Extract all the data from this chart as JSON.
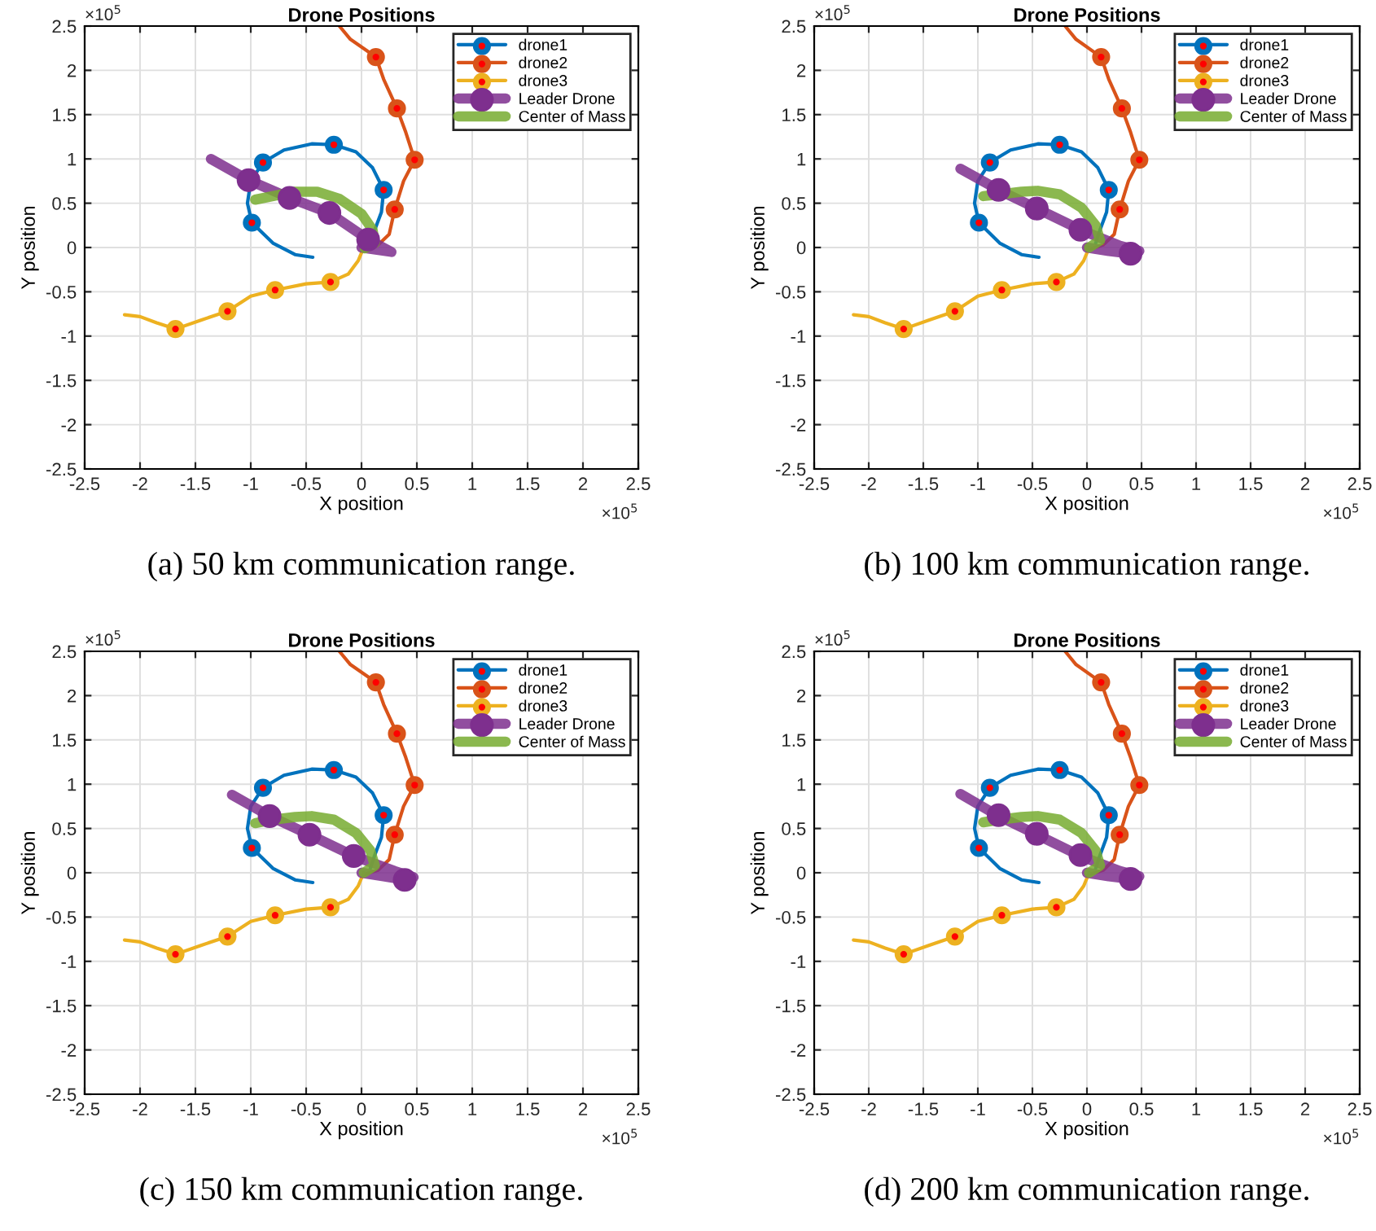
{
  "chart_data": [
    {
      "type": "line",
      "title": "Drone Positions",
      "xlabel": "X position",
      "ylabel": "Y position",
      "xlim": [
        -2.5,
        2.5
      ],
      "ylim": [
        -2.5,
        2.5
      ],
      "xticks": [
        -2.5,
        -2,
        -1.5,
        -1,
        -0.5,
        0,
        0.5,
        1,
        1.5,
        2,
        2.5
      ],
      "yticks": [
        -2.5,
        -2,
        -1.5,
        -1,
        -0.5,
        0,
        0.5,
        1,
        1.5,
        2,
        2.5
      ],
      "grid": true,
      "legend": "top right",
      "annotations": [
        "×10$^{5}$",
        "×10$^{5}$",
        "(a) 50 km communication range."
      ],
      "series": [
        {
          "name": "drone1",
          "color": "#0072bd",
          "x": [
            -0.44,
            -0.6,
            -0.8,
            -0.99,
            -1.03,
            -1.0,
            -0.89,
            -0.7,
            -0.45,
            -0.25,
            -0.05,
            0.1,
            0.2,
            0.18,
            0.12,
            0.08
          ],
          "values": [
            -0.11,
            -0.08,
            0.05,
            0.28,
            0.5,
            0.75,
            0.96,
            1.1,
            1.17,
            1.16,
            1.08,
            0.9,
            0.65,
            0.4,
            0.2,
            0.05
          ]
        },
        {
          "name": "drone2",
          "color": "#d95319",
          "x": [
            -0.2,
            -0.1,
            0.13,
            0.2,
            0.32,
            0.4,
            0.48,
            0.38,
            0.3,
            0.25,
            0.15,
            0.02
          ],
          "values": [
            2.5,
            2.35,
            2.15,
            1.9,
            1.57,
            1.3,
            0.99,
            0.75,
            0.43,
            0.15,
            0.03,
            -0.02
          ]
        },
        {
          "name": "drone3",
          "color": "#edb120",
          "x": [
            -2.14,
            -2.0,
            -1.85,
            -1.68,
            -1.45,
            -1.21,
            -1.0,
            -0.78,
            -0.5,
            -0.28,
            -0.12,
            -0.03,
            0.02
          ],
          "values": [
            -0.76,
            -0.78,
            -0.85,
            -0.92,
            -0.82,
            -0.72,
            -0.55,
            -0.48,
            -0.41,
            -0.39,
            -0.3,
            -0.15,
            0.0
          ]
        },
        {
          "name": "Leader Drone",
          "color": "#7e2f8e",
          "x": [
            -1.36,
            -1.02,
            -0.65,
            -0.29,
            0.06,
            0.27,
            0.0
          ],
          "values": [
            1.0,
            0.76,
            0.56,
            0.39,
            0.09,
            -0.05,
            0.0
          ]
        },
        {
          "name": "Center of Mass",
          "color": "#77ac30",
          "x": [
            -0.96,
            -0.8,
            -0.6,
            -0.4,
            -0.2,
            0.0,
            0.1,
            0.12,
            0.03
          ],
          "values": [
            0.54,
            0.58,
            0.63,
            0.63,
            0.55,
            0.38,
            0.2,
            0.05,
            -0.01
          ]
        },
        {
          "type": "scatter",
          "color": "#0072bd",
          "x": [
            -0.99,
            -0.89,
            -0.25,
            0.2
          ],
          "values": [
            0.28,
            0.96,
            1.16,
            0.65
          ]
        },
        {
          "type": "scatter",
          "color": "#d95319",
          "x": [
            0.13,
            0.32,
            0.48,
            0.3
          ],
          "values": [
            2.15,
            1.57,
            0.99,
            0.43
          ]
        },
        {
          "type": "scatter",
          "color": "#edb120",
          "x": [
            -1.68,
            -1.21,
            -0.78,
            -0.28
          ],
          "values": [
            -0.92,
            -0.72,
            -0.48,
            -0.39
          ]
        },
        {
          "type": "scatter",
          "color": "#7e2f8e",
          "x": [
            -1.02,
            -0.65,
            -0.29,
            0.06
          ],
          "values": [
            0.76,
            0.56,
            0.39,
            0.09
          ]
        }
      ]
    },
    {
      "type": "line",
      "title": "Drone Positions",
      "xlabel": "X position",
      "ylabel": "Y position",
      "xlim": [
        -2.5,
        2.5
      ],
      "ylim": [
        -2.5,
        2.5
      ],
      "xticks": [
        -2.5,
        -2,
        -1.5,
        -1,
        -0.5,
        0,
        0.5,
        1,
        1.5,
        2,
        2.5
      ],
      "yticks": [
        -2.5,
        -2,
        -1.5,
        -1,
        -0.5,
        0,
        0.5,
        1,
        1.5,
        2,
        2.5
      ],
      "grid": true,
      "legend": "top right",
      "annotations": [
        "×10$^{5}$",
        "×10$^{5}$",
        "(b) 100 km communication range."
      ],
      "series": [
        {
          "name": "drone1",
          "color": "#0072bd",
          "x": [
            -0.44,
            -0.6,
            -0.8,
            -0.99,
            -1.03,
            -1.0,
            -0.89,
            -0.7,
            -0.45,
            -0.25,
            -0.05,
            0.1,
            0.2,
            0.18,
            0.12,
            0.08
          ],
          "values": [
            -0.11,
            -0.08,
            0.05,
            0.28,
            0.5,
            0.75,
            0.96,
            1.1,
            1.17,
            1.16,
            1.08,
            0.9,
            0.65,
            0.4,
            0.2,
            0.05
          ]
        },
        {
          "name": "drone2",
          "color": "#d95319",
          "x": [
            -0.2,
            -0.1,
            0.13,
            0.2,
            0.32,
            0.4,
            0.48,
            0.38,
            0.3,
            0.25,
            0.15,
            0.02
          ],
          "values": [
            2.5,
            2.35,
            2.15,
            1.9,
            1.57,
            1.3,
            0.99,
            0.75,
            0.43,
            0.15,
            0.03,
            -0.02
          ]
        },
        {
          "name": "drone3",
          "color": "#edb120",
          "x": [
            -2.14,
            -2.0,
            -1.85,
            -1.68,
            -1.45,
            -1.21,
            -1.0,
            -0.78,
            -0.5,
            -0.28,
            -0.12,
            -0.03,
            0.02
          ],
          "values": [
            -0.76,
            -0.78,
            -0.85,
            -0.92,
            -0.82,
            -0.72,
            -0.55,
            -0.48,
            -0.41,
            -0.39,
            -0.3,
            -0.15,
            0.0
          ]
        },
        {
          "name": "Leader Drone",
          "color": "#7e2f8e",
          "x": [
            -1.16,
            -0.81,
            -0.46,
            -0.06,
            0.3,
            0.48,
            0.4,
            0.2,
            0.0
          ],
          "values": [
            0.89,
            0.65,
            0.44,
            0.2,
            0.02,
            -0.04,
            -0.07,
            -0.04,
            0.0
          ]
        },
        {
          "name": "Center of Mass",
          "color": "#77ac30",
          "x": [
            -0.95,
            -0.8,
            -0.6,
            -0.45,
            -0.25,
            -0.05,
            0.08,
            0.12,
            0.02
          ],
          "values": [
            0.58,
            0.6,
            0.63,
            0.64,
            0.6,
            0.45,
            0.25,
            0.08,
            0.0
          ]
        },
        {
          "type": "scatter",
          "color": "#0072bd",
          "x": [
            -0.99,
            -0.89,
            -0.25,
            0.2
          ],
          "values": [
            0.28,
            0.96,
            1.16,
            0.65
          ]
        },
        {
          "type": "scatter",
          "color": "#d95319",
          "x": [
            0.13,
            0.32,
            0.48,
            0.3
          ],
          "values": [
            2.15,
            1.57,
            0.99,
            0.43
          ]
        },
        {
          "type": "scatter",
          "color": "#edb120",
          "x": [
            -1.68,
            -1.21,
            -0.78,
            -0.28
          ],
          "values": [
            -0.92,
            -0.72,
            -0.48,
            -0.39
          ]
        },
        {
          "type": "scatter",
          "color": "#7e2f8e",
          "x": [
            -0.81,
            -0.46,
            -0.06,
            0.4
          ],
          "values": [
            0.65,
            0.44,
            0.2,
            -0.07
          ]
        }
      ]
    },
    {
      "type": "line",
      "title": "Drone Positions",
      "xlabel": "X position",
      "ylabel": "Y position",
      "xlim": [
        -2.5,
        2.5
      ],
      "ylim": [
        -2.5,
        2.5
      ],
      "xticks": [
        -2.5,
        -2,
        -1.5,
        -1,
        -0.5,
        0,
        0.5,
        1,
        1.5,
        2,
        2.5
      ],
      "yticks": [
        -2.5,
        -2,
        -1.5,
        -1,
        -0.5,
        0,
        0.5,
        1,
        1.5,
        2,
        2.5
      ],
      "grid": true,
      "legend": "top right",
      "annotations": [
        "×10$^{5}$",
        "×10$^{5}$",
        "(c) 150 km communication range."
      ],
      "series": [
        {
          "name": "drone1",
          "color": "#0072bd",
          "x": [
            -0.44,
            -0.6,
            -0.8,
            -0.99,
            -1.03,
            -1.0,
            -0.89,
            -0.7,
            -0.45,
            -0.25,
            -0.05,
            0.1,
            0.2,
            0.18,
            0.12,
            0.08
          ],
          "values": [
            -0.11,
            -0.08,
            0.05,
            0.28,
            0.5,
            0.75,
            0.96,
            1.1,
            1.17,
            1.16,
            1.08,
            0.9,
            0.65,
            0.4,
            0.2,
            0.05
          ]
        },
        {
          "name": "drone2",
          "color": "#d95319",
          "x": [
            -0.2,
            -0.1,
            0.13,
            0.2,
            0.32,
            0.4,
            0.48,
            0.38,
            0.3,
            0.25,
            0.15,
            0.02
          ],
          "values": [
            2.5,
            2.35,
            2.15,
            1.9,
            1.57,
            1.3,
            0.99,
            0.75,
            0.43,
            0.15,
            0.03,
            -0.02
          ]
        },
        {
          "name": "drone3",
          "color": "#edb120",
          "x": [
            -2.14,
            -2.0,
            -1.85,
            -1.68,
            -1.45,
            -1.21,
            -1.0,
            -0.78,
            -0.5,
            -0.28,
            -0.12,
            -0.03,
            0.02
          ],
          "values": [
            -0.76,
            -0.78,
            -0.85,
            -0.92,
            -0.82,
            -0.72,
            -0.55,
            -0.48,
            -0.41,
            -0.39,
            -0.3,
            -0.15,
            0.0
          ]
        },
        {
          "name": "Leader Drone",
          "color": "#7e2f8e",
          "x": [
            -1.17,
            -0.83,
            -0.47,
            -0.07,
            0.3,
            0.47,
            0.39,
            0.2,
            0.0
          ],
          "values": [
            0.88,
            0.64,
            0.43,
            0.19,
            0.02,
            -0.05,
            -0.08,
            -0.04,
            0.0
          ]
        },
        {
          "name": "Center of Mass",
          "color": "#77ac30",
          "x": [
            -0.96,
            -0.8,
            -0.6,
            -0.45,
            -0.25,
            -0.05,
            0.08,
            0.12,
            0.02
          ],
          "values": [
            0.56,
            0.6,
            0.63,
            0.64,
            0.6,
            0.45,
            0.25,
            0.08,
            0.0
          ]
        },
        {
          "type": "scatter",
          "color": "#0072bd",
          "x": [
            -0.99,
            -0.89,
            -0.25,
            0.2
          ],
          "values": [
            0.28,
            0.96,
            1.16,
            0.65
          ]
        },
        {
          "type": "scatter",
          "color": "#d95319",
          "x": [
            0.13,
            0.32,
            0.48,
            0.3
          ],
          "values": [
            2.15,
            1.57,
            0.99,
            0.43
          ]
        },
        {
          "type": "scatter",
          "color": "#edb120",
          "x": [
            -1.68,
            -1.21,
            -0.78,
            -0.28
          ],
          "values": [
            -0.92,
            -0.72,
            -0.48,
            -0.39
          ]
        },
        {
          "type": "scatter",
          "color": "#7e2f8e",
          "x": [
            -0.83,
            -0.47,
            -0.07,
            0.39
          ],
          "values": [
            0.64,
            0.43,
            0.19,
            -0.08
          ]
        }
      ]
    },
    {
      "type": "line",
      "title": "Drone Positions",
      "xlabel": "X position",
      "ylabel": "Y position",
      "xlim": [
        -2.5,
        2.5
      ],
      "ylim": [
        -2.5,
        2.5
      ],
      "xticks": [
        -2.5,
        -2,
        -1.5,
        -1,
        -0.5,
        0,
        0.5,
        1,
        1.5,
        2,
        2.5
      ],
      "yticks": [
        -2.5,
        -2,
        -1.5,
        -1,
        -0.5,
        0,
        0.5,
        1,
        1.5,
        2,
        2.5
      ],
      "grid": true,
      "legend": "top right",
      "annotations": [
        "×10$^{5}$",
        "×10$^{5}$",
        "(d) 200 km communication range."
      ],
      "series": [
        {
          "name": "drone1",
          "color": "#0072bd",
          "x": [
            -0.44,
            -0.6,
            -0.8,
            -0.99,
            -1.03,
            -1.0,
            -0.89,
            -0.7,
            -0.45,
            -0.25,
            -0.05,
            0.1,
            0.2,
            0.18,
            0.12,
            0.08
          ],
          "values": [
            -0.11,
            -0.08,
            0.05,
            0.28,
            0.5,
            0.75,
            0.96,
            1.1,
            1.17,
            1.16,
            1.08,
            0.9,
            0.65,
            0.4,
            0.2,
            0.05
          ]
        },
        {
          "name": "drone2",
          "color": "#d95319",
          "x": [
            -0.2,
            -0.1,
            0.13,
            0.2,
            0.32,
            0.4,
            0.48,
            0.38,
            0.3,
            0.25,
            0.15,
            0.02
          ],
          "values": [
            2.5,
            2.35,
            2.15,
            1.9,
            1.57,
            1.3,
            0.99,
            0.75,
            0.43,
            0.15,
            0.03,
            -0.02
          ]
        },
        {
          "name": "drone3",
          "color": "#edb120",
          "x": [
            -2.14,
            -2.0,
            -1.85,
            -1.68,
            -1.45,
            -1.21,
            -1.0,
            -0.78,
            -0.5,
            -0.28,
            -0.12,
            -0.03,
            0.02
          ],
          "values": [
            -0.76,
            -0.78,
            -0.85,
            -0.92,
            -0.82,
            -0.72,
            -0.55,
            -0.48,
            -0.41,
            -0.39,
            -0.3,
            -0.15,
            0.0
          ]
        },
        {
          "name": "Leader Drone",
          "color": "#7e2f8e",
          "x": [
            -1.16,
            -0.81,
            -0.46,
            -0.06,
            0.3,
            0.48,
            0.4,
            0.2,
            0.0
          ],
          "values": [
            0.89,
            0.64,
            0.43,
            0.19,
            0.02,
            -0.04,
            -0.07,
            -0.04,
            0.0
          ]
        },
        {
          "name": "Center of Mass",
          "color": "#77ac30",
          "x": [
            -0.95,
            -0.8,
            -0.6,
            -0.45,
            -0.25,
            -0.05,
            0.08,
            0.12,
            0.02
          ],
          "values": [
            0.57,
            0.6,
            0.63,
            0.64,
            0.6,
            0.45,
            0.25,
            0.08,
            0.0
          ]
        },
        {
          "type": "scatter",
          "color": "#0072bd",
          "x": [
            -0.99,
            -0.89,
            -0.25,
            0.2
          ],
          "values": [
            0.28,
            0.96,
            1.16,
            0.65
          ]
        },
        {
          "type": "scatter",
          "color": "#d95319",
          "x": [
            0.13,
            0.32,
            0.48,
            0.3
          ],
          "values": [
            2.15,
            1.57,
            0.99,
            0.43
          ]
        },
        {
          "type": "scatter",
          "color": "#edb120",
          "x": [
            -1.68,
            -1.21,
            -0.78,
            -0.28
          ],
          "values": [
            -0.92,
            -0.72,
            -0.48,
            -0.39
          ]
        },
        {
          "type": "scatter",
          "color": "#7e2f8e",
          "x": [
            -0.81,
            -0.46,
            -0.06,
            0.4
          ],
          "values": [
            0.65,
            0.44,
            0.2,
            -0.07
          ]
        }
      ]
    }
  ]
}
